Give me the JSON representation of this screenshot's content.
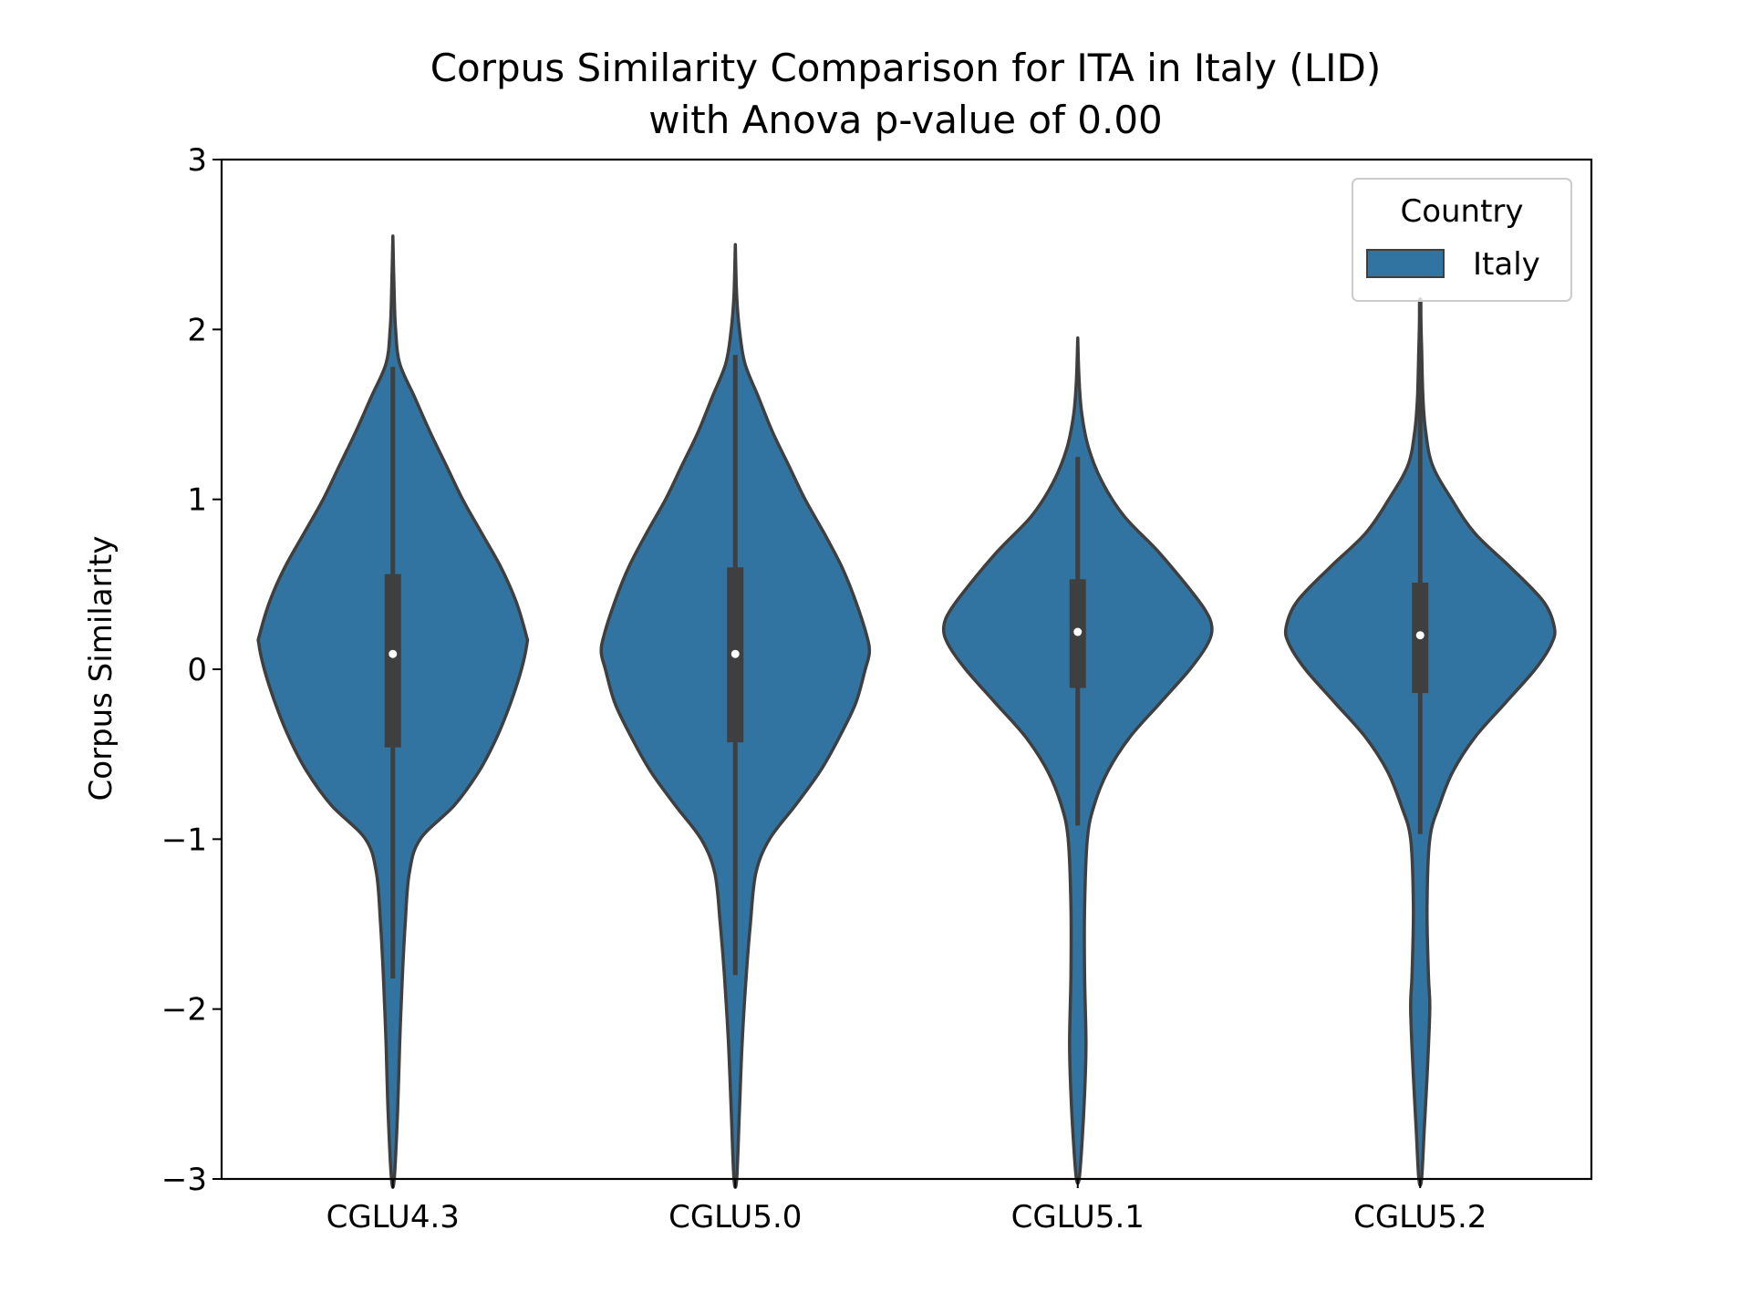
{
  "chart_data": {
    "type": "violin",
    "title_line1": "Corpus Similarity Comparison for ITA in Italy (LID)",
    "title_line2": "with Anova p-value of 0.00",
    "xlabel": "",
    "ylabel": "Corpus Similarity",
    "ylim": [
      -3,
      3
    ],
    "yticks": [
      -3,
      -2,
      -1,
      0,
      1,
      2,
      3
    ],
    "ytick_labels": [
      "−3",
      "−2",
      "−1",
      "0",
      "1",
      "2",
      "3"
    ],
    "categories": [
      "CGLU4.3",
      "CGLU5.0",
      "CGLU5.1",
      "CGLU5.2"
    ],
    "legend": {
      "title": "Country",
      "entries": [
        "Italy"
      ],
      "placement": "top-right"
    },
    "colors": {
      "fill": "#3274a1",
      "edge": "#3f3f3f",
      "median": "#ffffff"
    },
    "series": [
      {
        "name": "Italy",
        "violins": [
          {
            "category": "CGLU4.3",
            "median": 0.09,
            "q1": -0.46,
            "q3": 0.56,
            "whisker_low": -1.82,
            "whisker_high": 1.78,
            "ymin": -3.0,
            "ymax": 2.55,
            "profile": [
              [
                2.55,
                0.0
              ],
              [
                2.2,
                0.01
              ],
              [
                2.0,
                0.02
              ],
              [
                1.8,
                0.05
              ],
              [
                1.6,
                0.16
              ],
              [
                1.4,
                0.27
              ],
              [
                1.2,
                0.39
              ],
              [
                1.0,
                0.51
              ],
              [
                0.8,
                0.65
              ],
              [
                0.6,
                0.79
              ],
              [
                0.4,
                0.9
              ],
              [
                0.2,
                0.975
              ],
              [
                0.15,
                0.98
              ],
              [
                0.0,
                0.94
              ],
              [
                -0.2,
                0.86
              ],
              [
                -0.4,
                0.76
              ],
              [
                -0.6,
                0.63
              ],
              [
                -0.8,
                0.45
              ],
              [
                -1.0,
                0.2
              ],
              [
                -1.2,
                0.12
              ],
              [
                -1.5,
                0.09
              ],
              [
                -1.8,
                0.07
              ],
              [
                -2.2,
                0.05
              ],
              [
                -2.6,
                0.035
              ],
              [
                -3.0,
                0.01
              ]
            ]
          },
          {
            "category": "CGLU5.0",
            "median": 0.09,
            "q1": -0.43,
            "q3": 0.6,
            "whisker_low": -1.8,
            "whisker_high": 1.85,
            "ymin": -3.0,
            "ymax": 2.5,
            "profile": [
              [
                2.5,
                0.0
              ],
              [
                2.2,
                0.01
              ],
              [
                2.0,
                0.03
              ],
              [
                1.8,
                0.07
              ],
              [
                1.6,
                0.17
              ],
              [
                1.4,
                0.27
              ],
              [
                1.2,
                0.39
              ],
              [
                1.0,
                0.51
              ],
              [
                0.8,
                0.65
              ],
              [
                0.6,
                0.78
              ],
              [
                0.4,
                0.88
              ],
              [
                0.2,
                0.96
              ],
              [
                0.1,
                0.98
              ],
              [
                0.0,
                0.95
              ],
              [
                -0.2,
                0.88
              ],
              [
                -0.4,
                0.76
              ],
              [
                -0.6,
                0.62
              ],
              [
                -0.8,
                0.44
              ],
              [
                -1.0,
                0.25
              ],
              [
                -1.2,
                0.15
              ],
              [
                -1.5,
                0.11
              ],
              [
                -1.8,
                0.08
              ],
              [
                -2.2,
                0.05
              ],
              [
                -2.6,
                0.03
              ],
              [
                -3.0,
                0.01
              ]
            ]
          },
          {
            "category": "CGLU5.1",
            "median": 0.22,
            "q1": -0.11,
            "q3": 0.53,
            "whisker_low": -0.92,
            "whisker_high": 1.25,
            "ymin": -3.0,
            "ymax": 1.95,
            "profile": [
              [
                1.95,
                0.0
              ],
              [
                1.7,
                0.01
              ],
              [
                1.5,
                0.03
              ],
              [
                1.3,
                0.08
              ],
              [
                1.1,
                0.18
              ],
              [
                0.9,
                0.34
              ],
              [
                0.7,
                0.58
              ],
              [
                0.5,
                0.79
              ],
              [
                0.35,
                0.93
              ],
              [
                0.25,
                0.98
              ],
              [
                0.15,
                0.95
              ],
              [
                0.0,
                0.82
              ],
              [
                -0.2,
                0.6
              ],
              [
                -0.4,
                0.38
              ],
              [
                -0.6,
                0.22
              ],
              [
                -0.8,
                0.12
              ],
              [
                -1.0,
                0.07
              ],
              [
                -1.4,
                0.05
              ],
              [
                -1.8,
                0.05
              ],
              [
                -2.2,
                0.06
              ],
              [
                -2.5,
                0.05
              ],
              [
                -2.8,
                0.03
              ],
              [
                -3.0,
                0.01
              ]
            ]
          },
          {
            "category": "CGLU5.2",
            "median": 0.2,
            "q1": -0.14,
            "q3": 0.51,
            "whisker_low": -0.97,
            "whisker_high": 2.18,
            "ymin": -3.0,
            "ymax": 2.18,
            "profile": [
              [
                2.18,
                0.0
              ],
              [
                1.9,
                0.01
              ],
              [
                1.6,
                0.02
              ],
              [
                1.4,
                0.04
              ],
              [
                1.2,
                0.09
              ],
              [
                1.0,
                0.23
              ],
              [
                0.8,
                0.4
              ],
              [
                0.6,
                0.66
              ],
              [
                0.4,
                0.9
              ],
              [
                0.25,
                0.98
              ],
              [
                0.15,
                0.96
              ],
              [
                0.0,
                0.84
              ],
              [
                -0.2,
                0.62
              ],
              [
                -0.4,
                0.4
              ],
              [
                -0.6,
                0.24
              ],
              [
                -0.8,
                0.14
              ],
              [
                -1.0,
                0.07
              ],
              [
                -1.4,
                0.05
              ],
              [
                -1.8,
                0.06
              ],
              [
                -2.0,
                0.07
              ],
              [
                -2.4,
                0.05
              ],
              [
                -2.7,
                0.03
              ],
              [
                -3.0,
                0.01
              ]
            ]
          }
        ]
      }
    ]
  }
}
